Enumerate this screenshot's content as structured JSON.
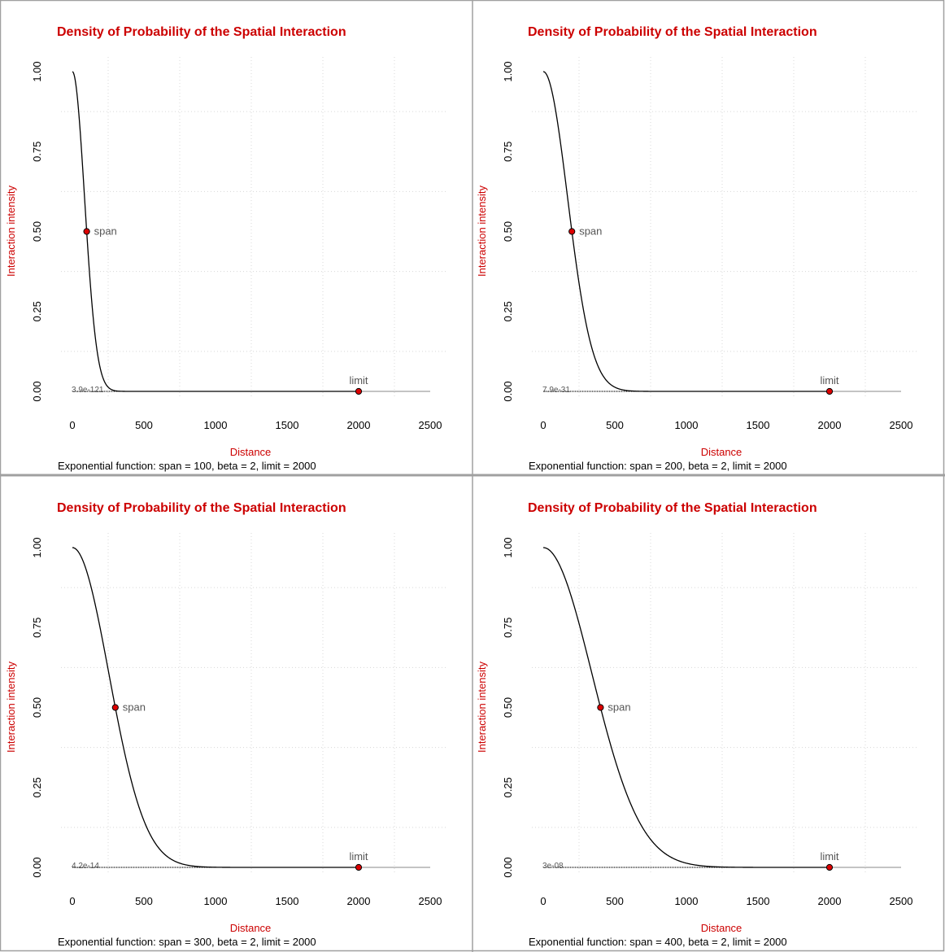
{
  "colors": {
    "title": "#cc0000",
    "axis_title": "#cc0000",
    "curve": "#000000",
    "point_fill": "#dd0000",
    "grid": "#d8d8d8",
    "panel_border": "#a0a0a0"
  },
  "chart_data": [
    {
      "type": "line",
      "title": "Density of Probability of the Spatial Interaction",
      "xlabel": "Distance",
      "ylabel": "Interaction intensity",
      "caption": "Exponential function: span = 100, beta = 2, limit = 2000",
      "function": {
        "span": 100,
        "beta": 2,
        "limit": 2000
      },
      "xlim": [
        0,
        2500
      ],
      "ylim": [
        0,
        1
      ],
      "x_ticks": [
        0,
        500,
        1000,
        1500,
        2000,
        2500
      ],
      "x_tick_labels": [
        "0",
        "500",
        "1000",
        "1500",
        "2000",
        "2500"
      ],
      "y_ticks": [
        0,
        0.25,
        0.5,
        0.75,
        1
      ],
      "y_tick_labels": [
        "0.00",
        "0.25",
        "0.50",
        "0.75",
        "1.00"
      ],
      "grid": true,
      "points": [
        {
          "label": "span",
          "x": 100,
          "y": 0.5
        },
        {
          "label": "limit",
          "x": 2000,
          "y": 0
        }
      ],
      "min_value_label": "3.9e-121"
    },
    {
      "type": "line",
      "title": "Density of Probability of the Spatial Interaction",
      "xlabel": "Distance",
      "ylabel": "Interaction intensity",
      "caption": "Exponential function: span = 200, beta = 2, limit = 2000",
      "function": {
        "span": 200,
        "beta": 2,
        "limit": 2000
      },
      "xlim": [
        0,
        2500
      ],
      "ylim": [
        0,
        1
      ],
      "x_ticks": [
        0,
        500,
        1000,
        1500,
        2000,
        2500
      ],
      "x_tick_labels": [
        "0",
        "500",
        "1000",
        "1500",
        "2000",
        "2500"
      ],
      "y_ticks": [
        0,
        0.25,
        0.5,
        0.75,
        1
      ],
      "y_tick_labels": [
        "0.00",
        "0.25",
        "0.50",
        "0.75",
        "1.00"
      ],
      "grid": true,
      "points": [
        {
          "label": "span",
          "x": 200,
          "y": 0.5
        },
        {
          "label": "limit",
          "x": 2000,
          "y": 0
        }
      ],
      "min_value_label": "7.9e-31"
    },
    {
      "type": "line",
      "title": "Density of Probability of the Spatial Interaction",
      "xlabel": "Distance",
      "ylabel": "Interaction intensity",
      "caption": "Exponential function: span = 300, beta = 2, limit = 2000",
      "function": {
        "span": 300,
        "beta": 2,
        "limit": 2000
      },
      "xlim": [
        0,
        2500
      ],
      "ylim": [
        0,
        1
      ],
      "x_ticks": [
        0,
        500,
        1000,
        1500,
        2000,
        2500
      ],
      "x_tick_labels": [
        "0",
        "500",
        "1000",
        "1500",
        "2000",
        "2500"
      ],
      "y_ticks": [
        0,
        0.25,
        0.5,
        0.75,
        1
      ],
      "y_tick_labels": [
        "0.00",
        "0.25",
        "0.50",
        "0.75",
        "1.00"
      ],
      "grid": true,
      "points": [
        {
          "label": "span",
          "x": 300,
          "y": 0.5
        },
        {
          "label": "limit",
          "x": 2000,
          "y": 0
        }
      ],
      "min_value_label": "4.2e-14"
    },
    {
      "type": "line",
      "title": "Density of Probability of the Spatial Interaction",
      "xlabel": "Distance",
      "ylabel": "Interaction intensity",
      "caption": "Exponential function: span = 400, beta = 2, limit = 2000",
      "function": {
        "span": 400,
        "beta": 2,
        "limit": 2000
      },
      "xlim": [
        0,
        2500
      ],
      "ylim": [
        0,
        1
      ],
      "x_ticks": [
        0,
        500,
        1000,
        1500,
        2000,
        2500
      ],
      "x_tick_labels": [
        "0",
        "500",
        "1000",
        "1500",
        "2000",
        "2500"
      ],
      "y_ticks": [
        0,
        0.25,
        0.5,
        0.75,
        1
      ],
      "y_tick_labels": [
        "0.00",
        "0.25",
        "0.50",
        "0.75",
        "1.00"
      ],
      "grid": true,
      "points": [
        {
          "label": "span",
          "x": 400,
          "y": 0.5
        },
        {
          "label": "limit",
          "x": 2000,
          "y": 0
        }
      ],
      "min_value_label": "3e-08"
    }
  ]
}
